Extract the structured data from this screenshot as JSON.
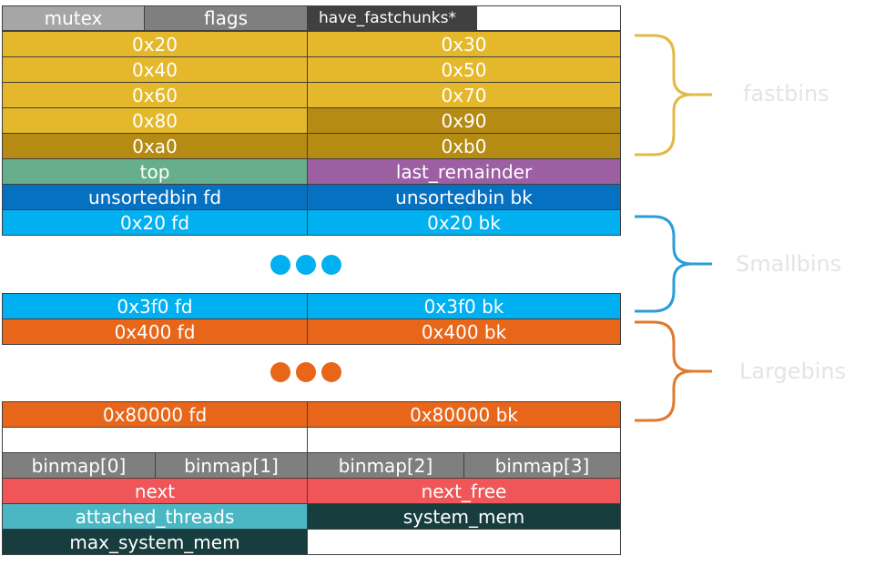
{
  "colors": {
    "gray_light": "#a6a6a6",
    "gray_dark": "#7f7f7f",
    "gold": "#e4b82a",
    "gold_dark": "#b58b14",
    "green": "#67af8c",
    "purple": "#9b5fa2",
    "blue_dark": "#0771c1",
    "blue_light": "#00b0f0",
    "orange": "#e8661a",
    "red": "#f05658",
    "teal": "#4bb7c3",
    "dark_teal": "#173d3e",
    "white": "#ffffff",
    "fast_brace": "#e3b945",
    "small_brace": "#2a9ed8",
    "large_brace": "#e07a2c"
  },
  "header": {
    "mutex": "mutex",
    "flags": "flags",
    "have_fastchunks": "have_fastchunks*"
  },
  "fastbins": [
    [
      "0x20",
      "0x30"
    ],
    [
      "0x40",
      "0x50"
    ],
    [
      "0x60",
      "0x70"
    ],
    [
      "0x80",
      "0x90"
    ],
    [
      "0xa0",
      "0xb0"
    ]
  ],
  "top": "top",
  "last_remainder": "last_remainder",
  "unsortedbin_fd": "unsortedbin fd",
  "unsortedbin_bk": "unsortedbin bk",
  "small_first": [
    "0x20 fd",
    "0x20 bk"
  ],
  "small_last": [
    "0x3f0 fd",
    "0x3f0 bk"
  ],
  "large_first": [
    "0x400 fd",
    "0x400 bk"
  ],
  "large_last": [
    "0x80000 fd",
    "0x80000 bk"
  ],
  "binmap": [
    "binmap[0]",
    "binmap[1]",
    "binmap[2]",
    "binmap[3]"
  ],
  "next": "next",
  "next_free": "next_free",
  "attached_threads": "attached_threads",
  "system_mem": "system_mem",
  "max_system_mem": "max_system_mem",
  "labels": {
    "fastbins": "fastbins",
    "smallbins": "Smallbins",
    "largebins": "Largebins"
  }
}
